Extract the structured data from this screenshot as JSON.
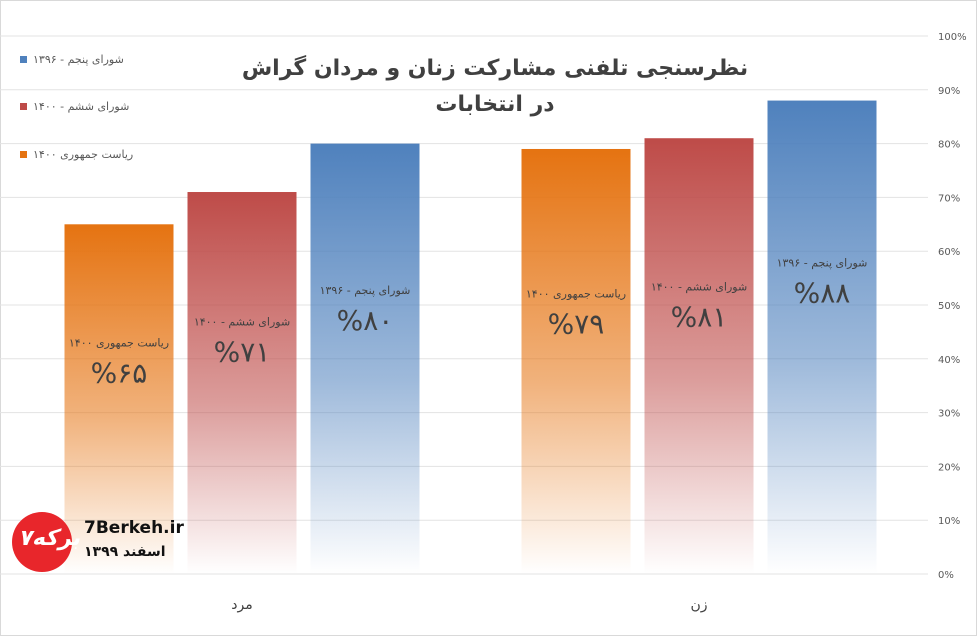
{
  "chart_data": {
    "type": "bar",
    "title_line1": "نظرسنجی تلفنی مشارکت زنان و مردان گراش",
    "title_line2": "در انتخابات",
    "categories": [
      "مرد",
      "زن"
    ],
    "series": [
      {
        "name": "ریاست جمهوری ۱۴۰۰",
        "values": [
          65,
          79
        ],
        "labels": [
          "%۶۵",
          "%۷۹"
        ],
        "color": "#e57311"
      },
      {
        "name": "شورای ششم - ۱۴۰۰",
        "values": [
          71,
          81
        ],
        "labels": [
          "%۷۱",
          "%۸۱"
        ],
        "color": "#be4b48"
      },
      {
        "name": "شورای پنجم - ۱۳۹۶",
        "values": [
          80,
          88
        ],
        "labels": [
          "%۸۰",
          "%۸۸"
        ],
        "color": "#4f81bd"
      }
    ],
    "y_ticks": [
      "0%",
      "10%",
      "20%",
      "30%",
      "40%",
      "50%",
      "60%",
      "70%",
      "80%",
      "90%",
      "100%"
    ],
    "ylim": [
      0,
      100
    ],
    "grid": true,
    "legend_position": "left",
    "legend": [
      {
        "label": "شورای پنجم - ۱۳۹۶",
        "color": "#4f81bd"
      },
      {
        "label": "شورای ششم - ۱۴۰۰",
        "color": "#be4b48"
      },
      {
        "label": "ریاست جمهوری ۱۴۰۰",
        "color": "#e57311"
      }
    ]
  },
  "branding": {
    "site": "7Berkeh.ir",
    "date": "اسفند ۱۳۹۹"
  }
}
